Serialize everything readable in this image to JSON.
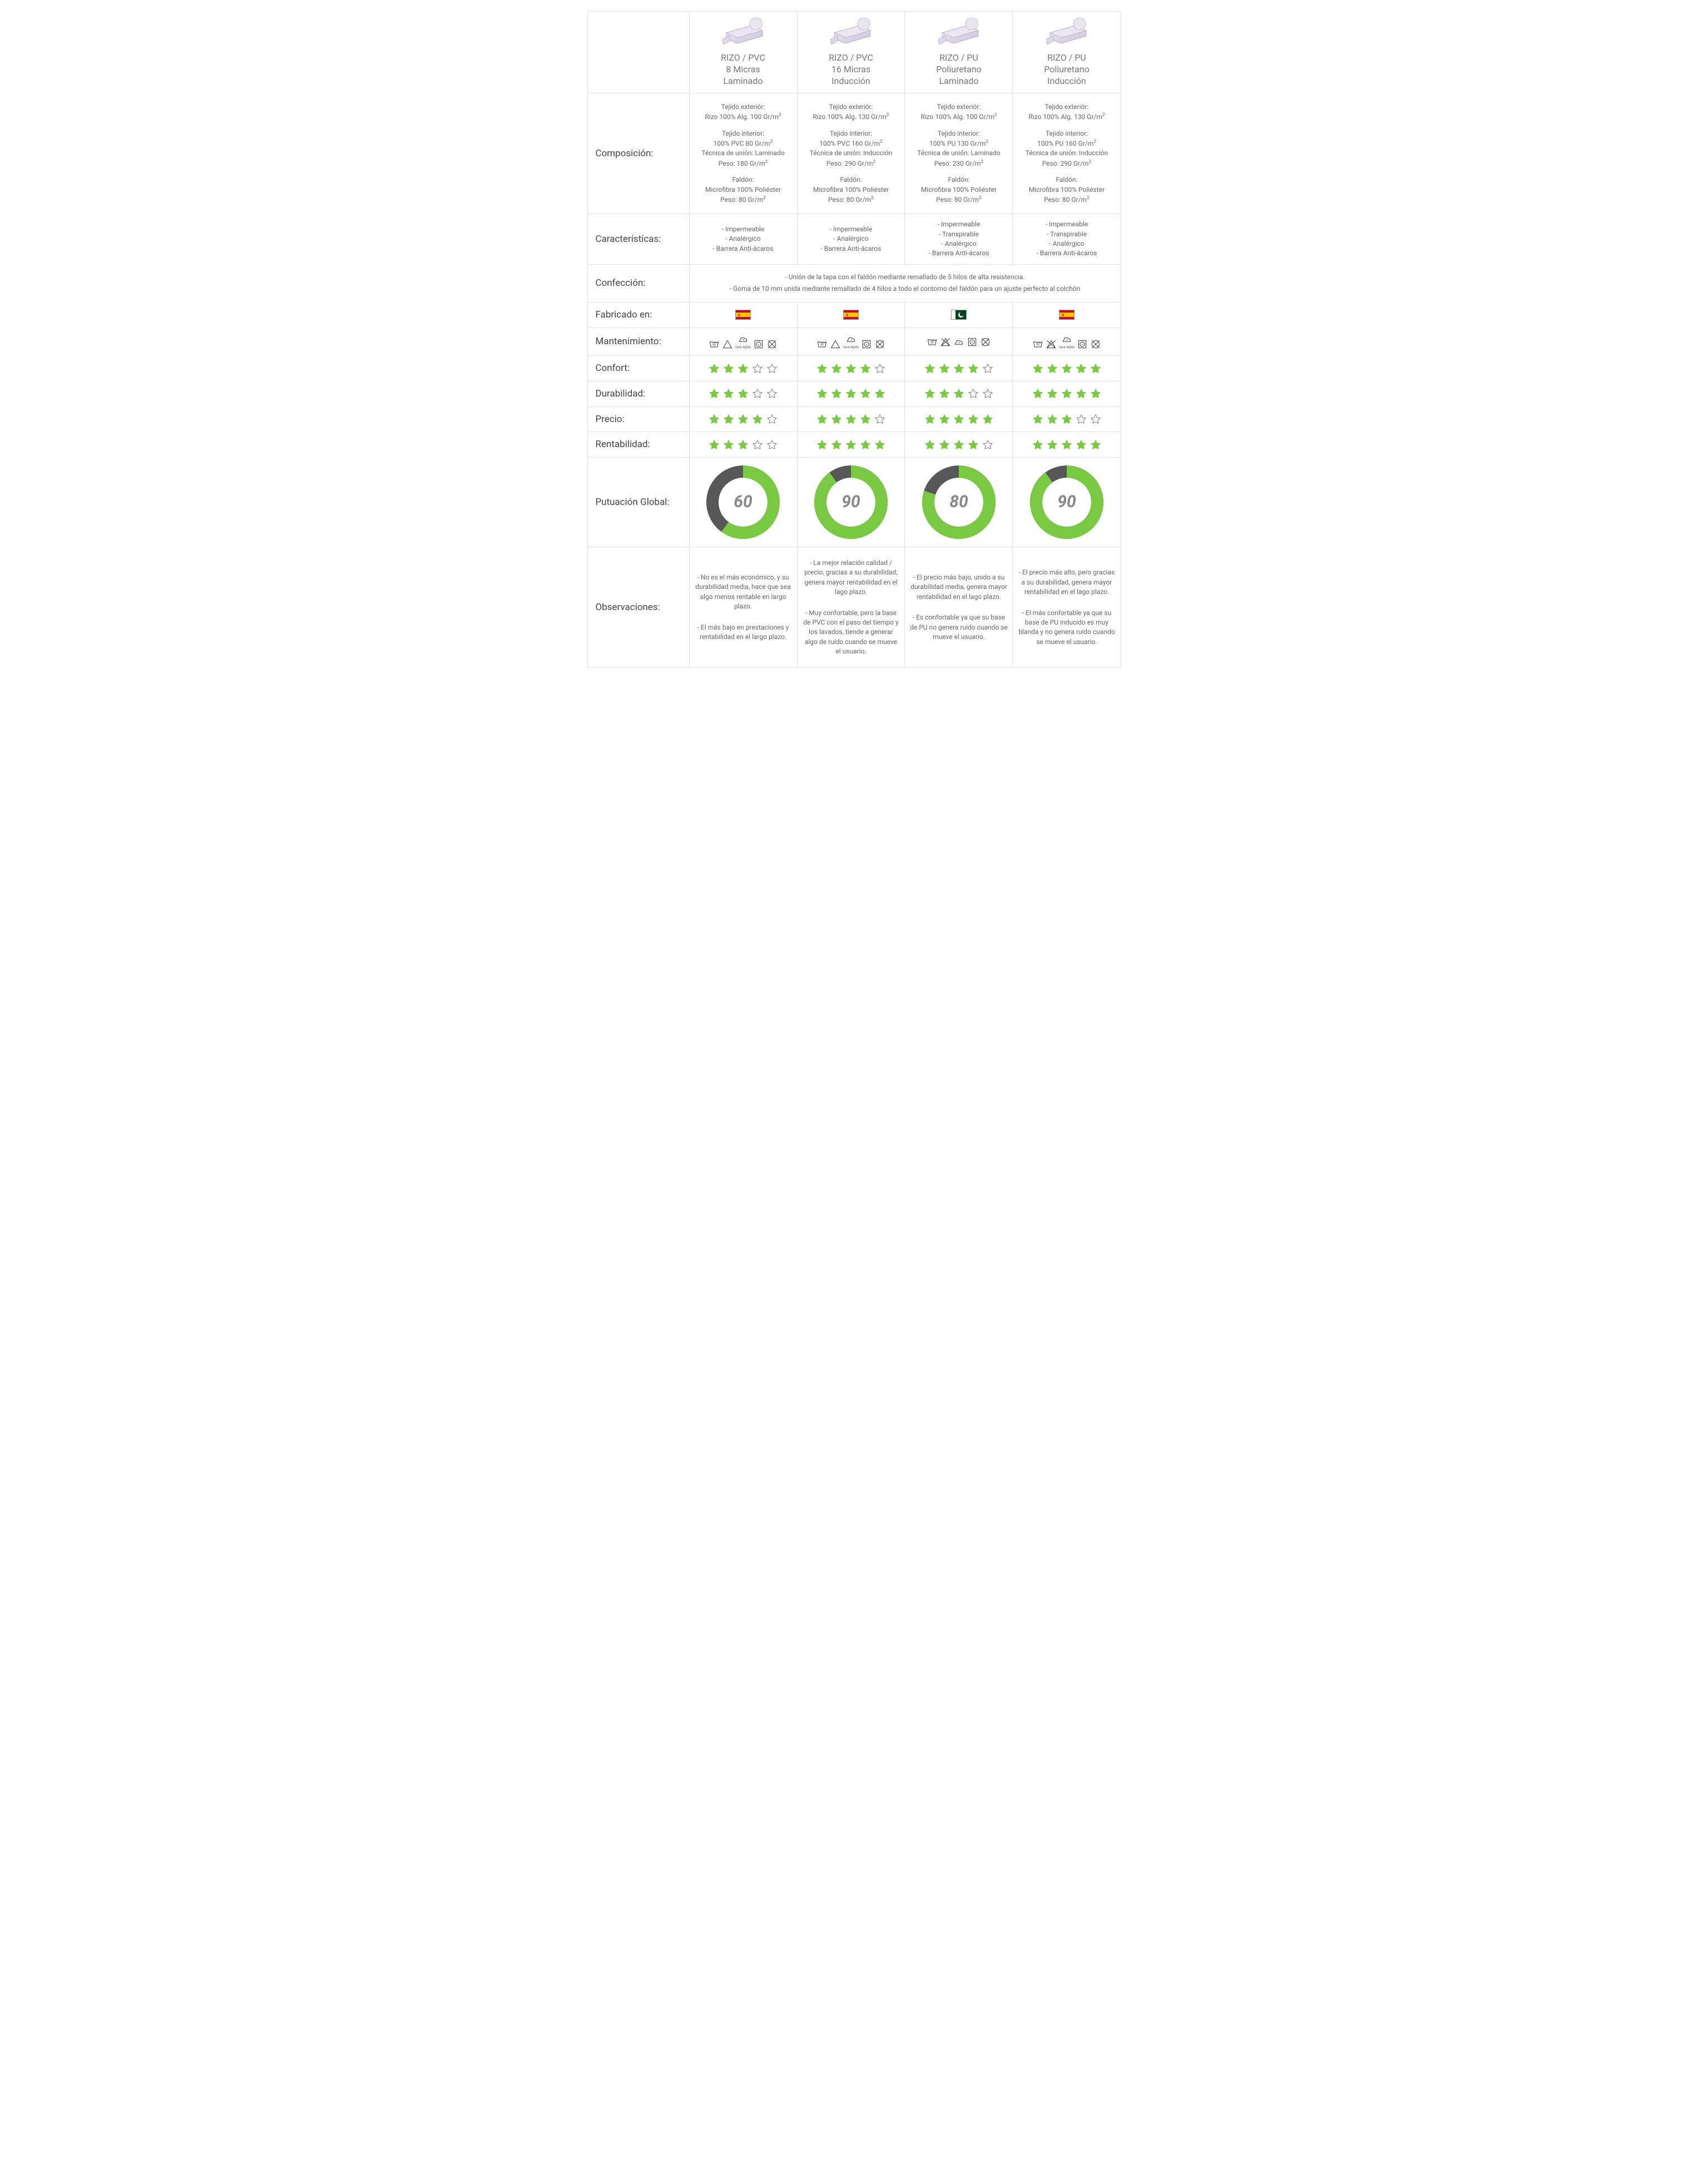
{
  "colors": {
    "star_fill": "#7ac943",
    "star_empty_stroke": "#888888",
    "donut_fill": "#7ac943",
    "donut_track": "#575757",
    "text": "#666666",
    "border": "#e0e0e0"
  },
  "row_labels": {
    "composicion": "Composición:",
    "caracteristicas": "Características:",
    "confeccion": "Confección:",
    "fabricado": "Fabricado en:",
    "mantenimiento": "Mantenimiento:",
    "confort": "Confort:",
    "durabilidad": "Durabilidad:",
    "precio": "Precio:",
    "rentabilidad": "Rentabilidad:",
    "global": "Putuación Global:",
    "observaciones": "Observaciones:"
  },
  "confeccion_lines": [
    "- Unión de la tapa con el faldón mediante remallado de 5 hilos de alta resistencia.",
    "- Goma de 10 mm unida mediante  remallado de 4 hilos a todo el contorno del faldón  para un ajuste perfecto al colchón"
  ],
  "products": [
    {
      "title": [
        "RIZO / PVC",
        "8 Micras",
        "Laminado"
      ],
      "composicion": {
        "ext": [
          "Tejido exteriór:",
          "Rizo 100% Alg. 100 Gr/m²"
        ],
        "int": [
          "Tejido interior:",
          "100% PVC  80 Gr/m²",
          "Técnica de unión: Laminado",
          "Peso: 180 Gr/m²"
        ],
        "faldon": [
          "Faldón:",
          "Microfibra 100% Poliéster",
          "Peso: 80 Gr/m²"
        ]
      },
      "caracteristicas": [
        "- Impermeable",
        "- Analérgico",
        "- Barrera Anti-ácaros"
      ],
      "flag": "spain",
      "care": {
        "wash": "60",
        "iron_sub": "cara tejido",
        "bleach_ok": true,
        "iron_ok": true
      },
      "ratings": {
        "confort": 3,
        "durabilidad": 3,
        "precio": 4,
        "rentabilidad": 3
      },
      "global": 60,
      "observaciones": [
        "- No es el más económico, y su durabilidad media, hace que sea algo menos rentable en largo plazo.",
        "- El más bajo en prestaciones y rentabilidad en el largo plazo."
      ]
    },
    {
      "title": [
        "RIZO / PVC",
        "16 Micras",
        "Inducción"
      ],
      "composicion": {
        "ext": [
          "Tejido exteriór:",
          "Rizo 100% Alg. 130 Gr/m²"
        ],
        "int": [
          "Tejido interior:",
          "100% PVC  160 Gr/m²",
          "Técnica de unión: Inducción",
          "Peso: 290 Gr/m²"
        ],
        "faldon": [
          "Faldón:",
          "Microfibra 100% Poliéster",
          "Peso: 80 Gr/m²"
        ]
      },
      "caracteristicas": [
        "- Impermeable",
        "- Analérgico",
        "- Barrera Anti-ácaros"
      ],
      "flag": "spain",
      "care": {
        "wash": "95",
        "iron_sub": "cara tejido",
        "bleach_ok": true,
        "iron_ok": true
      },
      "ratings": {
        "confort": 4,
        "durabilidad": 5,
        "precio": 4,
        "rentabilidad": 5
      },
      "global": 90,
      "observaciones": [
        "- La mejor relación calidad / precio, gracias a su durabilidad, genera mayor rentabilidad en el lago plazo.",
        "- Muy confortable, pero la base de PVC con el paso del tiempo y los lavados, tiende a generar algo de ruido cuando se mueve el usuario."
      ]
    },
    {
      "title": [
        "RIZO / PU",
        "Poliuretano",
        "Laminado"
      ],
      "composicion": {
        "ext": [
          "Tejido exteriór:",
          "Rizo 100% Alg. 100 Gr/m²"
        ],
        "int": [
          "Tejido interior:",
          "100% PU 130 Gr/m²",
          "Técnica de unión: Laminado",
          "Peso: 230 Gr/m²"
        ],
        "faldon": [
          "Faldón:",
          "Microfibra 100% Poliéster",
          "Peso: 80 Gr/m²"
        ]
      },
      "caracteristicas": [
        "- Impermeable",
        "- Transpirable",
        "- Analérgico",
        "- Barrera Anti-ácaros"
      ],
      "flag": "pak",
      "care": {
        "wash": "60",
        "iron_sub": "",
        "bleach_ok": false,
        "iron_ok": true
      },
      "ratings": {
        "confort": 4,
        "durabilidad": 3,
        "precio": 5,
        "rentabilidad": 4
      },
      "global": 80,
      "observaciones": [
        "- El precio más bajo, unido a su durabilidad media, genera mayor rentabilidad en el lago plazo.",
        "- Es confortable ya que su base de PU no genera ruido cuando se mueve el usuario."
      ]
    },
    {
      "title": [
        "RIZO / PU",
        "Poliuretano",
        "Inducción"
      ],
      "composicion": {
        "ext": [
          "Tejido exteriór:",
          "Rizo 100% Alg. 130 Gr/m²"
        ],
        "int": [
          "Tejido interior:",
          "100% PU 160 Gr/m²",
          "Técnica de unión: Inducción",
          "Peso: 290 Gr/m²"
        ],
        "faldon": [
          "Faldón:",
          "Microfibra 100% Poliéster",
          "Peso: 80 Gr/m²"
        ]
      },
      "caracteristicas": [
        "- Impermeable",
        "- Transpirable",
        "- Analérgico",
        "- Barrera Anti-ácaros"
      ],
      "flag": "spain",
      "care": {
        "wash": "95",
        "iron_sub": "cara tejido",
        "bleach_ok": false,
        "iron_ok": true
      },
      "ratings": {
        "confort": 5,
        "durabilidad": 5,
        "precio": 3,
        "rentabilidad": 5
      },
      "global": 90,
      "observaciones": [
        "- El precio más alto, pero gracias a su durabilidad, genera mayor rentabilidad en el lago plazo.",
        "- El más confortable ya que su base de PU inducido es muy blanda y no genera ruido cuando se mueve el usuario."
      ]
    }
  ]
}
